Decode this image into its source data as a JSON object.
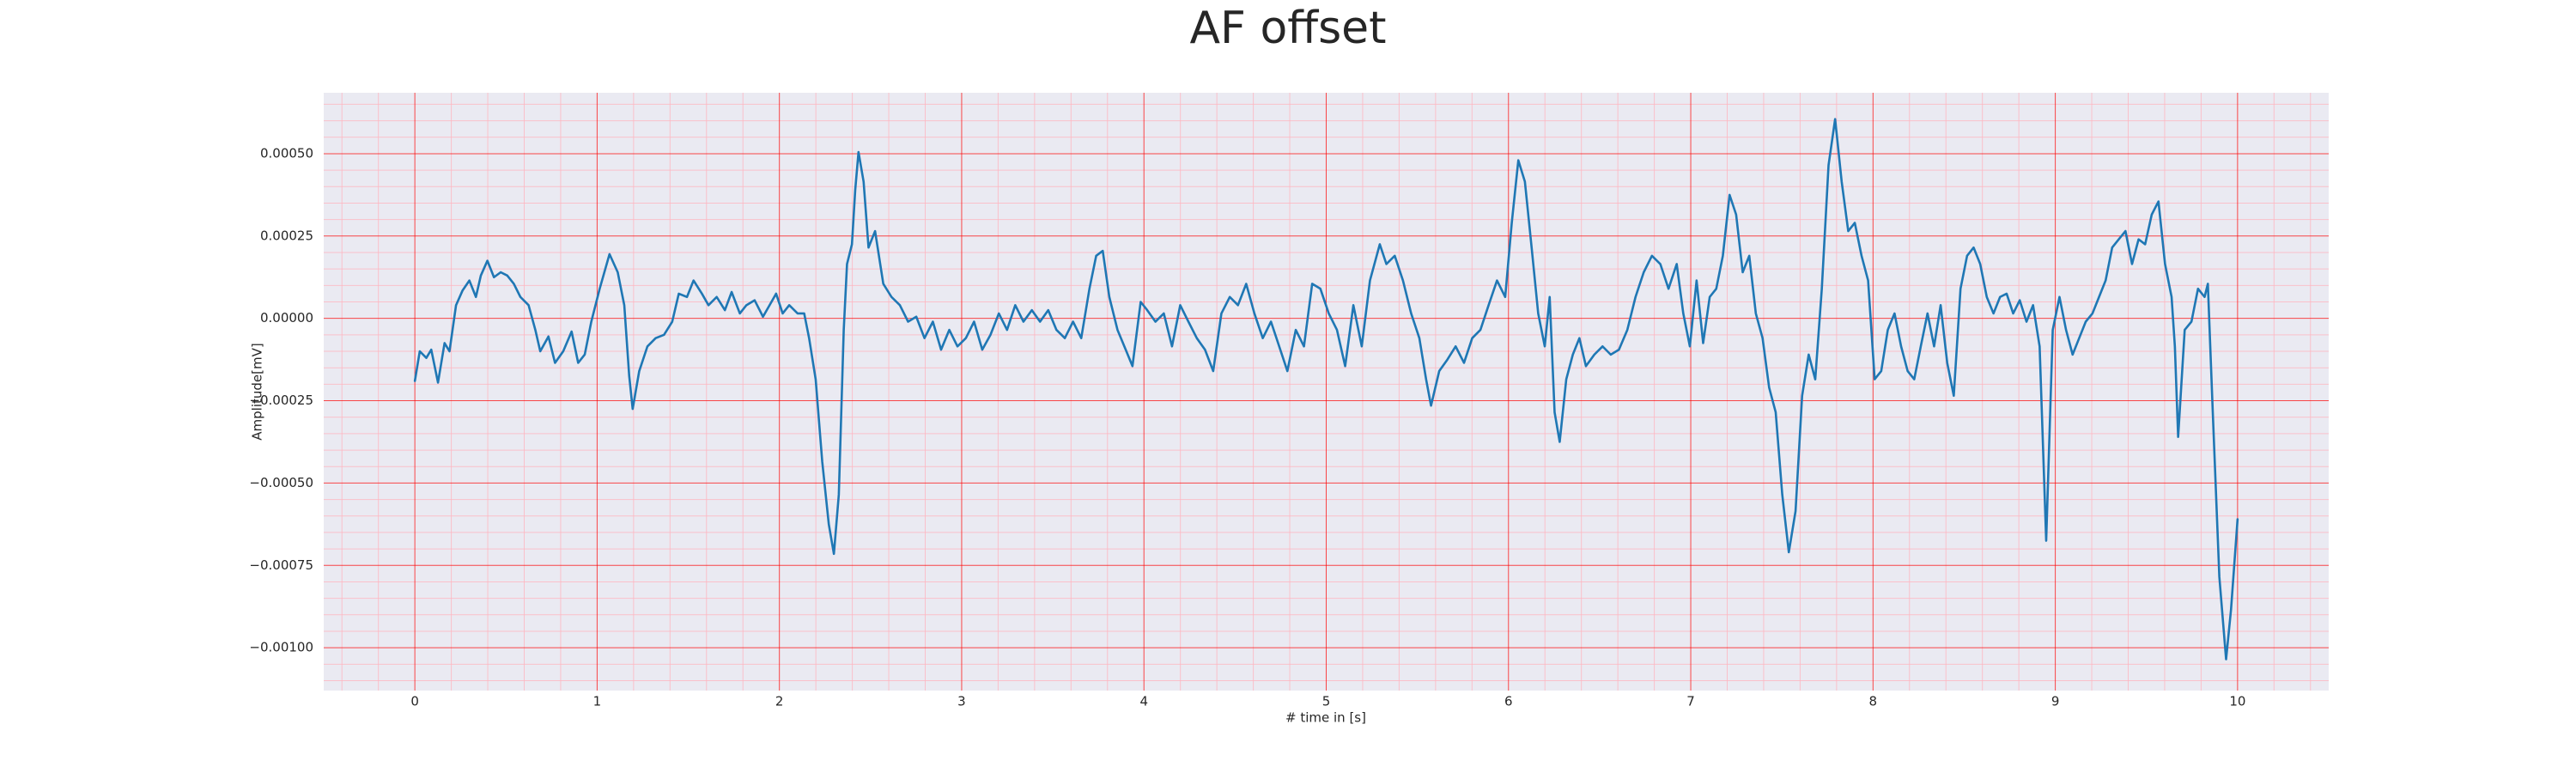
{
  "chart_data": {
    "type": "line",
    "title": "AF offset",
    "xlabel": "# time in [s]",
    "ylabel": "Amplitude[mV]",
    "color": "#1f77b4",
    "grid": true,
    "grid_color": "#ff0000",
    "minor_grid_color": "#ffb6c1",
    "background": "#eaeaf2",
    "xlim": [
      -0.5,
      10.5
    ],
    "ylim": [
      -0.00113,
      0.000685
    ],
    "xticks": [
      0,
      1,
      2,
      3,
      4,
      5,
      6,
      7,
      8,
      9,
      10
    ],
    "yticks": [
      {
        "value": -0.001,
        "label": "−0.00100"
      },
      {
        "value": -0.00075,
        "label": "−0.00075"
      },
      {
        "value": -0.0005,
        "label": "−0.00050"
      },
      {
        "value": -0.00025,
        "label": "−0.00025"
      },
      {
        "value": 0,
        "label": "0.00000"
      },
      {
        "value": 0.00025,
        "label": "0.00025"
      },
      {
        "value": 0.0005,
        "label": "0.00050"
      }
    ],
    "xminorticks": [
      -0.4,
      -0.2,
      0.2,
      0.4,
      0.6,
      0.8,
      1.2,
      1.4,
      1.6,
      1.8,
      2.2,
      2.4,
      2.6,
      2.8,
      3.2,
      3.4,
      3.6,
      3.8,
      4.2,
      4.4,
      4.6,
      4.8,
      5.2,
      5.4,
      5.6,
      5.8,
      6.2,
      6.4,
      6.6,
      6.8,
      7.2,
      7.4,
      7.6,
      7.8,
      8.2,
      8.4,
      8.6,
      8.8,
      9.2,
      9.4,
      9.6,
      9.8,
      10.2,
      10.4
    ],
    "yminorticks": [
      -0.0011,
      -0.00105,
      -0.00095,
      -0.0009,
      -0.00085,
      -0.0008,
      -0.0007,
      -0.00065,
      -0.0006,
      -0.00055,
      -0.00045,
      -0.0004,
      -0.00035,
      -0.0003,
      -0.0002,
      -0.00015,
      -0.0001,
      -5e-05,
      5e-05,
      0.0001,
      0.00015,
      0.0002,
      0.0003,
      0.00035,
      0.0004,
      0.00045,
      0.00055,
      0.0006,
      0.00065
    ],
    "x": [
      0,
      0.027,
      0.063,
      0.09,
      0.127,
      0.163,
      0.19,
      0.226,
      0.262,
      0.299,
      0.335,
      0.362,
      0.398,
      0.434,
      0.471,
      0.507,
      0.543,
      0.579,
      0.624,
      0.661,
      0.688,
      0.733,
      0.769,
      0.814,
      0.86,
      0.896,
      0.932,
      0.968,
      1.014,
      1.068,
      1.113,
      1.149,
      1.176,
      1.195,
      1.231,
      1.276,
      1.321,
      1.367,
      1.412,
      1.448,
      1.493,
      1.529,
      1.575,
      1.611,
      1.656,
      1.701,
      1.738,
      1.783,
      1.819,
      1.864,
      1.91,
      1.946,
      1.982,
      2.018,
      2.054,
      2.1,
      2.136,
      2.163,
      2.199,
      2.235,
      2.271,
      2.299,
      2.326,
      2.353,
      2.371,
      2.398,
      2.416,
      2.434,
      2.462,
      2.489,
      2.525,
      2.57,
      2.615,
      2.661,
      2.706,
      2.751,
      2.796,
      2.842,
      2.887,
      2.932,
      2.977,
      3.023,
      3.068,
      3.113,
      3.158,
      3.204,
      3.249,
      3.294,
      3.339,
      3.385,
      3.43,
      3.475,
      3.52,
      3.566,
      3.611,
      3.656,
      3.701,
      3.738,
      3.774,
      3.81,
      3.855,
      3.9,
      3.937,
      3.982,
      4.018,
      4.063,
      4.109,
      4.154,
      4.199,
      4.244,
      4.29,
      4.335,
      4.38,
      4.425,
      4.471,
      4.516,
      4.561,
      4.606,
      4.652,
      4.697,
      4.742,
      4.787,
      4.833,
      4.878,
      4.923,
      4.968,
      5.014,
      5.059,
      5.104,
      5.149,
      5.195,
      5.24,
      5.294,
      5.33,
      5.376,
      5.421,
      5.466,
      5.511,
      5.548,
      5.575,
      5.62,
      5.665,
      5.71,
      5.756,
      5.801,
      5.846,
      5.891,
      5.937,
      5.982,
      6.018,
      6.054,
      6.09,
      6.127,
      6.163,
      6.199,
      6.226,
      6.253,
      6.281,
      6.317,
      6.353,
      6.389,
      6.425,
      6.471,
      6.516,
      6.561,
      6.606,
      6.652,
      6.697,
      6.742,
      6.787,
      6.833,
      6.878,
      6.923,
      6.959,
      6.995,
      7.032,
      7.068,
      7.104,
      7.14,
      7.176,
      7.213,
      7.249,
      7.285,
      7.321,
      7.357,
      7.394,
      7.43,
      7.466,
      7.502,
      7.538,
      7.575,
      7.611,
      7.647,
      7.683,
      7.719,
      7.756,
      7.792,
      7.828,
      7.864,
      7.9,
      7.937,
      7.973,
      8.009,
      8.045,
      8.081,
      8.118,
      8.154,
      8.19,
      8.226,
      8.262,
      8.299,
      8.335,
      8.371,
      8.407,
      8.443,
      8.48,
      8.516,
      8.552,
      8.588,
      8.624,
      8.661,
      8.697,
      8.733,
      8.769,
      8.805,
      8.842,
      8.878,
      8.914,
      8.95,
      8.986,
      9.023,
      9.059,
      9.095,
      9.131,
      9.167,
      9.204,
      9.24,
      9.276,
      9.312,
      9.348,
      9.385,
      9.421,
      9.457,
      9.493,
      9.529,
      9.566,
      9.602,
      9.638,
      9.656,
      9.674,
      9.71,
      9.747,
      9.783,
      9.819,
      9.837,
      9.864,
      9.9,
      9.937,
      9.964,
      10.0
    ],
    "values": [
      -0.00019,
      -0.0001,
      -0.00012,
      -9.5e-05,
      -0.000195,
      -7.5e-05,
      -0.0001,
      4e-05,
      8.5e-05,
      0.000115,
      6.5e-05,
      0.00013,
      0.000175,
      0.000125,
      0.00014,
      0.00013,
      0.000105,
      6.5e-05,
      4e-05,
      -3.5e-05,
      -0.0001,
      -5.5e-05,
      -0.000135,
      -0.0001,
      -4e-05,
      -0.000135,
      -0.00011,
      -1e-05,
      9e-05,
      0.000195,
      0.00014,
      4e-05,
      -0.000175,
      -0.000275,
      -0.00016,
      -8.5e-05,
      -6e-05,
      -5e-05,
      -1e-05,
      7.5e-05,
      6.5e-05,
      0.000115,
      7.5e-05,
      4e-05,
      6.5e-05,
      2.5e-05,
      8e-05,
      1.5e-05,
      4e-05,
      5.5e-05,
      5e-06,
      4e-05,
      7.5e-05,
      1.5e-05,
      4e-05,
      1.5e-05,
      1.5e-05,
      -6e-05,
      -0.000185,
      -0.000435,
      -0.000625,
      -0.000715,
      -0.000535,
      -3.5e-05,
      0.000165,
      0.000225,
      0.00039,
      0.000505,
      0.000415,
      0.000215,
      0.000265,
      0.000105,
      6.5e-05,
      4e-05,
      -1e-05,
      5e-06,
      -6e-05,
      -1e-05,
      -9.5e-05,
      -3.5e-05,
      -8.5e-05,
      -6e-05,
      -1e-05,
      -9.5e-05,
      -5e-05,
      1.5e-05,
      -3.5e-05,
      4e-05,
      -1e-05,
      2.5e-05,
      -1e-05,
      2.5e-05,
      -3.5e-05,
      -6e-05,
      -1e-05,
      -6e-05,
      9e-05,
      0.00019,
      0.000205,
      6.5e-05,
      -3.5e-05,
      -9.5e-05,
      -0.000145,
      5e-05,
      2.5e-05,
      -1e-05,
      1.5e-05,
      -8.5e-05,
      4e-05,
      -1e-05,
      -6e-05,
      -9.5e-05,
      -0.00016,
      1.5e-05,
      6.5e-05,
      4e-05,
      0.000105,
      1.5e-05,
      -6e-05,
      -1e-05,
      -8.5e-05,
      -0.00016,
      -3.5e-05,
      -8.5e-05,
      0.000105,
      9e-05,
      1.5e-05,
      -3.5e-05,
      -0.000145,
      4e-05,
      -8.5e-05,
      0.000115,
      0.000225,
      0.000165,
      0.00019,
      0.000115,
      1.5e-05,
      -6e-05,
      -0.000185,
      -0.000265,
      -0.00016,
      -0.000125,
      -8.5e-05,
      -0.000135,
      -6e-05,
      -3.5e-05,
      4e-05,
      0.000115,
      6.5e-05,
      0.00029,
      0.00048,
      0.000415,
      0.000215,
      1.5e-05,
      -8.5e-05,
      6.5e-05,
      -0.000285,
      -0.000375,
      -0.000185,
      -0.00011,
      -6e-05,
      -0.000145,
      -0.00011,
      -8.5e-05,
      -0.00011,
      -9.5e-05,
      -3.5e-05,
      6.5e-05,
      0.00014,
      0.00019,
      0.000165,
      9e-05,
      0.000165,
      1.5e-05,
      -8.5e-05,
      0.000115,
      -7.5e-05,
      6.5e-05,
      9e-05,
      0.00019,
      0.000375,
      0.000315,
      0.00014,
      0.00019,
      1.5e-05,
      -6e-05,
      -0.00021,
      -0.000285,
      -0.000535,
      -0.00071,
      -0.000585,
      -0.000235,
      -0.00011,
      -0.000185,
      9e-05,
      0.000465,
      0.000605,
      0.000415,
      0.000265,
      0.00029,
      0.00019,
      0.000115,
      -0.000185,
      -0.00016,
      -3.5e-05,
      1.5e-05,
      -8.5e-05,
      -0.00016,
      -0.000185,
      -8.5e-05,
      1.5e-05,
      -8.5e-05,
      4e-05,
      -0.000135,
      -0.000235,
      9e-05,
      0.00019,
      0.000215,
      0.000165,
      6.5e-05,
      1.5e-05,
      6.5e-05,
      7.5e-05,
      1.5e-05,
      5.5e-05,
      -1e-05,
      4e-05,
      -8.5e-05,
      -0.000675,
      -3.5e-05,
      6.5e-05,
      -3.5e-05,
      -0.00011,
      -6e-05,
      -1e-05,
      1.5e-05,
      6.5e-05,
      0.000115,
      0.000215,
      0.00024,
      0.000265,
      0.000165,
      0.00024,
      0.000225,
      0.000315,
      0.000355,
      0.000165,
      6.5e-05,
      -8.5e-05,
      -0.00036,
      -3.5e-05,
      -1e-05,
      9e-05,
      6.5e-05,
      0.000105,
      -0.000285,
      -0.000785,
      -0.001035,
      -0.000885,
      -0.00061
    ]
  }
}
